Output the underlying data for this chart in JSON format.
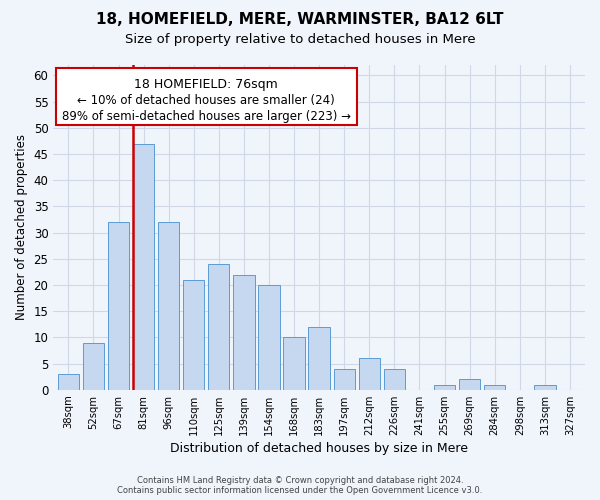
{
  "title": "18, HOMEFIELD, MERE, WARMINSTER, BA12 6LT",
  "subtitle": "Size of property relative to detached houses in Mere",
  "xlabel": "Distribution of detached houses by size in Mere",
  "ylabel": "Number of detached properties",
  "categories": [
    "38sqm",
    "52sqm",
    "67sqm",
    "81sqm",
    "96sqm",
    "110sqm",
    "125sqm",
    "139sqm",
    "154sqm",
    "168sqm",
    "183sqm",
    "197sqm",
    "212sqm",
    "226sqm",
    "241sqm",
    "255sqm",
    "269sqm",
    "284sqm",
    "298sqm",
    "313sqm",
    "327sqm"
  ],
  "values": [
    3,
    9,
    32,
    47,
    32,
    21,
    24,
    22,
    20,
    10,
    12,
    4,
    6,
    4,
    0,
    1,
    2,
    1,
    0,
    1,
    0
  ],
  "bar_color": "#c5d8f0",
  "bar_edge_color": "#5b9bd5",
  "highlight_bar_index": 3,
  "highlight_line_color": "#cc0000",
  "ylim": [
    0,
    62
  ],
  "yticks": [
    0,
    5,
    10,
    15,
    20,
    25,
    30,
    35,
    40,
    45,
    50,
    55,
    60
  ],
  "annotation_line1": "18 HOMEFIELD: 76sqm",
  "annotation_line2": "← 10% of detached houses are smaller (24)",
  "annotation_line3": "89% of semi-detached houses are larger (223) →",
  "footer_line1": "Contains HM Land Registry data © Crown copyright and database right 2024.",
  "footer_line2": "Contains public sector information licensed under the Open Government Licence v3.0.",
  "grid_color": "#d0d8e8",
  "background_color": "#f0f4fb"
}
